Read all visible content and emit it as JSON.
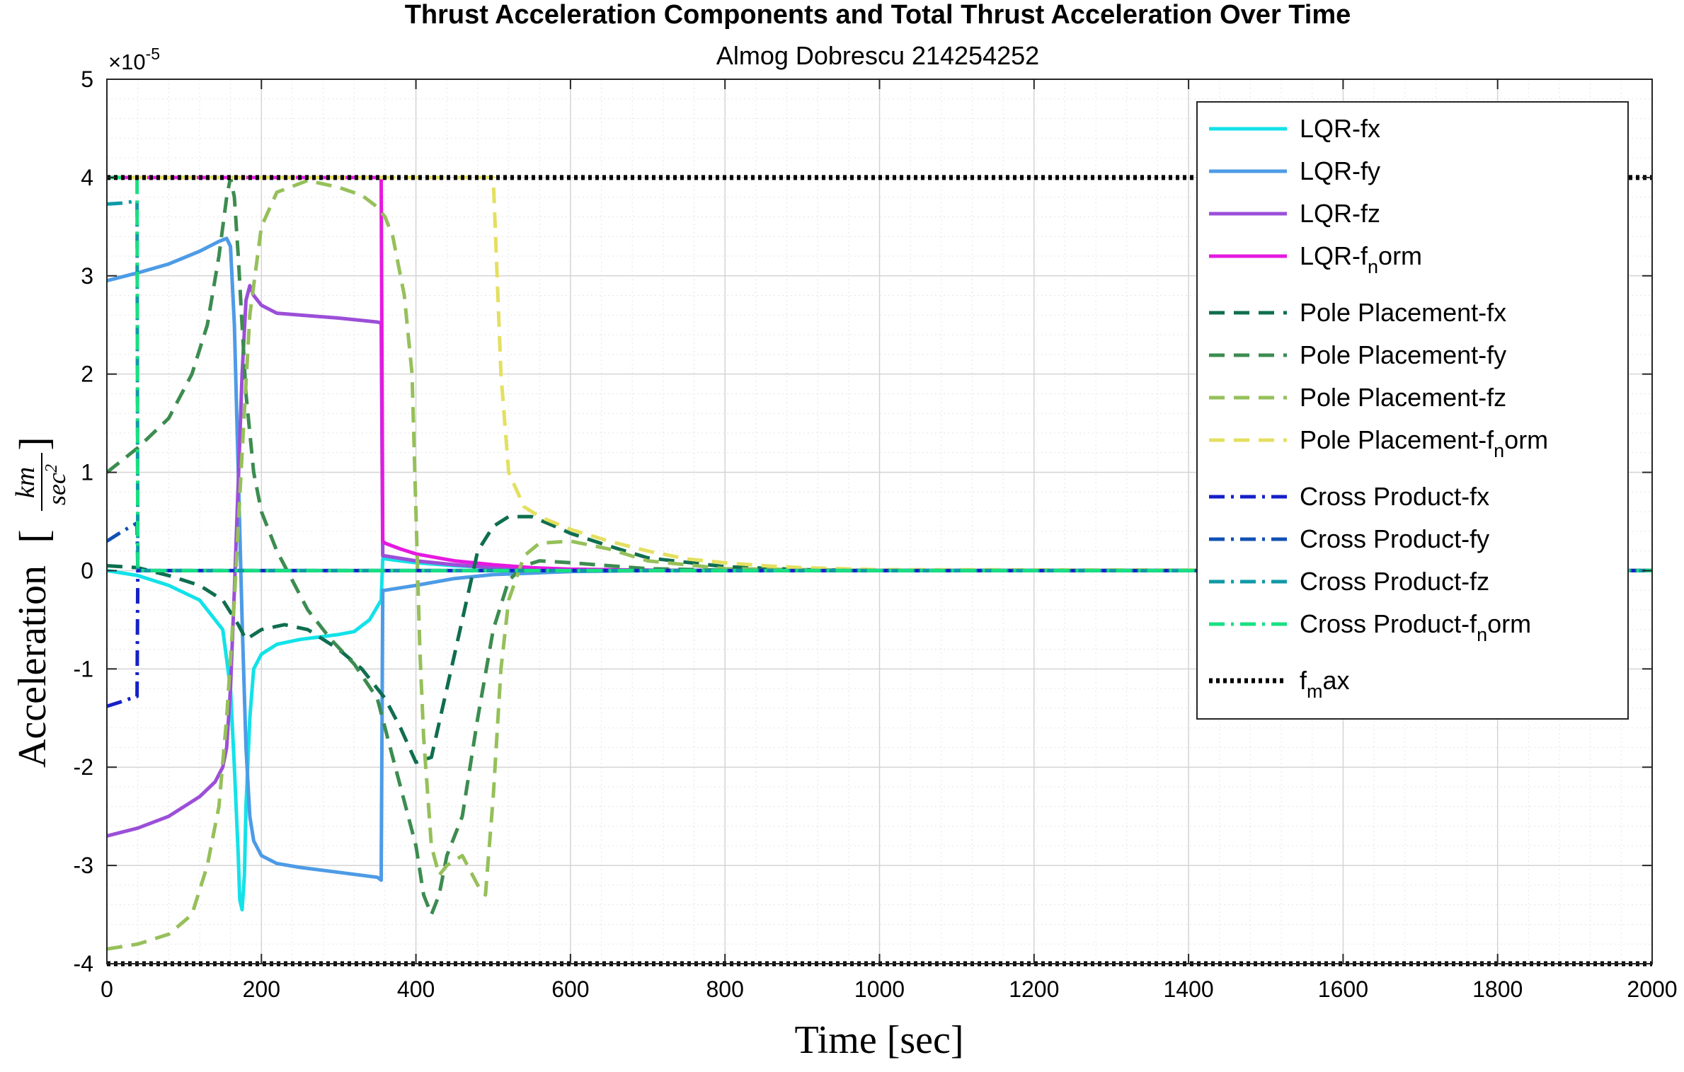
{
  "chart_data": {
    "type": "line",
    "title": "Thrust Acceleration Components and Total Thrust Acceleration Over Time",
    "subtitle": "Almog Dobrescu 214254252",
    "xlabel": "Time [sec]",
    "ylabel_text": "Acceleration",
    "ylabel_unit_numerator": "km",
    "ylabel_unit_denominator": "sec",
    "ylabel_unit_power": "2",
    "y_scale_base": "×10",
    "y_scale_exponent": "-5",
    "xlim": [
      0,
      2000
    ],
    "ylim": [
      -4,
      5
    ],
    "y_multiplier": 1e-05,
    "xticks": [
      0,
      200,
      400,
      600,
      800,
      1000,
      1200,
      1400,
      1600,
      1800,
      2000
    ],
    "xtick_labels": [
      "0",
      "200",
      "400",
      "600",
      "800",
      "1000",
      "1200",
      "1400",
      "1600",
      "1800",
      "2000"
    ],
    "yticks": [
      5,
      4,
      3,
      2,
      1,
      0,
      -1,
      -2,
      -3,
      -4
    ],
    "ytick_labels": [
      "5",
      "4",
      "3",
      "2",
      "1",
      "0",
      "-1",
      "-2",
      "-3",
      "-4"
    ],
    "grid": true,
    "minor_grid": true,
    "legend_position": "top-right",
    "series": [
      {
        "name": "LQR-fx",
        "legend_main": "LQR-fx",
        "legend_sub": "",
        "legend_tail": "",
        "color": "#13e2e8",
        "dash": "solid",
        "x": [
          0,
          40,
          80,
          120,
          150,
          160,
          165,
          170,
          172,
          175,
          178,
          180,
          185,
          190,
          200,
          220,
          250,
          280,
          300,
          320,
          340,
          355,
          357,
          360,
          380,
          400,
          450,
          500,
          600,
          700,
          800,
          1000,
          2000
        ],
        "y": [
          0,
          -0.05,
          -0.15,
          -0.3,
          -0.6,
          -1.2,
          -2,
          -2.9,
          -3.35,
          -3.45,
          -3.1,
          -2.4,
          -1.5,
          -1.0,
          -0.85,
          -0.75,
          -0.7,
          -0.67,
          -0.65,
          -0.62,
          -0.5,
          -0.3,
          0.12,
          0.12,
          0.1,
          0.08,
          0.05,
          0.03,
          0.01,
          0,
          0,
          0,
          0
        ]
      },
      {
        "name": "LQR-fy",
        "legend_main": "LQR-fy",
        "legend_sub": "",
        "legend_tail": "",
        "color": "#4d9be6",
        "dash": "solid",
        "x": [
          0,
          40,
          80,
          120,
          145,
          155,
          160,
          165,
          170,
          175,
          180,
          185,
          190,
          200,
          220,
          250,
          300,
          350,
          355,
          357,
          360,
          400,
          450,
          500,
          600,
          700,
          800,
          1000,
          2000
        ],
        "y": [
          2.95,
          3.03,
          3.12,
          3.25,
          3.35,
          3.38,
          3.3,
          2.5,
          1.0,
          -0.5,
          -1.8,
          -2.5,
          -2.75,
          -2.9,
          -2.98,
          -3.02,
          -3.07,
          -3.12,
          -3.15,
          -0.2,
          -0.2,
          -0.15,
          -0.08,
          -0.04,
          -0.01,
          0,
          0,
          0,
          0
        ]
      },
      {
        "name": "LQR-fz",
        "legend_main": "LQR-fz",
        "legend_sub": "",
        "legend_tail": "",
        "color": "#9b4fd8",
        "dash": "solid",
        "x": [
          0,
          40,
          80,
          120,
          140,
          150,
          155,
          160,
          165,
          170,
          175,
          180,
          185,
          190,
          200,
          220,
          250,
          300,
          350,
          355,
          357,
          360,
          400,
          450,
          500,
          600,
          700,
          800,
          1000,
          2000
        ],
        "y": [
          -2.7,
          -2.62,
          -2.5,
          -2.3,
          -2.15,
          -2.0,
          -1.8,
          -1.2,
          -0.2,
          0.9,
          2.0,
          2.75,
          2.9,
          2.8,
          2.7,
          2.62,
          2.6,
          2.57,
          2.53,
          2.52,
          0.15,
          0.15,
          0.1,
          0.06,
          0.03,
          0.01,
          0,
          0,
          0,
          0
        ]
      },
      {
        "name": "LQR-f_norm",
        "legend_main": "LQR-f",
        "legend_sub": "n",
        "legend_tail": "orm",
        "color": "#e619e0",
        "dash": "solid",
        "x": [
          0,
          355,
          357,
          360,
          380,
          400,
          450,
          500,
          550,
          600,
          700,
          800,
          1000,
          2000
        ],
        "y": [
          4,
          4,
          0.3,
          0.28,
          0.22,
          0.17,
          0.1,
          0.06,
          0.03,
          0.015,
          0.005,
          0,
          0,
          0
        ]
      },
      {
        "name": "Pole Placement-fx",
        "legend_main": "Pole Placement-fx",
        "legend_sub": "",
        "legend_tail": "",
        "color": "#0f6e50",
        "dash": "dashed",
        "x": [
          0,
          40,
          80,
          120,
          150,
          170,
          180,
          200,
          230,
          260,
          300,
          330,
          360,
          380,
          400,
          420,
          440,
          460,
          480,
          500,
          520,
          550,
          580,
          600,
          650,
          700,
          800,
          900,
          1000,
          2000
        ],
        "y": [
          0.05,
          0.03,
          -0.05,
          -0.15,
          -0.3,
          -0.55,
          -0.7,
          -0.6,
          -0.55,
          -0.6,
          -0.8,
          -1.0,
          -1.3,
          -1.6,
          -1.95,
          -1.9,
          -1.2,
          -0.5,
          0.2,
          0.45,
          0.55,
          0.55,
          0.45,
          0.38,
          0.25,
          0.13,
          0.04,
          0.01,
          0,
          0
        ]
      },
      {
        "name": "Pole Placement-fy",
        "legend_main": "Pole Placement-fy",
        "legend_sub": "",
        "legend_tail": "",
        "color": "#3c8c50",
        "dash": "dashed",
        "x": [
          0,
          40,
          80,
          110,
          130,
          145,
          155,
          160,
          165,
          170,
          175,
          180,
          190,
          200,
          220,
          240,
          260,
          290,
          320,
          350,
          380,
          400,
          410,
          420,
          430,
          440,
          460,
          480,
          500,
          520,
          540,
          560,
          600,
          700,
          800,
          1000,
          2000
        ],
        "y": [
          1.0,
          1.25,
          1.55,
          2.0,
          2.5,
          3.2,
          3.8,
          4.0,
          3.8,
          3.2,
          2.5,
          1.8,
          1.0,
          0.6,
          0.2,
          -0.1,
          -0.4,
          -0.7,
          -0.95,
          -1.3,
          -2.2,
          -2.8,
          -3.3,
          -3.5,
          -3.3,
          -2.9,
          -2.5,
          -1.5,
          -0.6,
          -0.1,
          0.05,
          0.1,
          0.08,
          0.02,
          0.005,
          0,
          0
        ]
      },
      {
        "name": "Pole Placement-fz",
        "legend_main": "Pole Placement-fz",
        "legend_sub": "",
        "legend_tail": "",
        "color": "#96c05a",
        "dash": "dashed",
        "x": [
          0,
          40,
          80,
          110,
          130,
          145,
          155,
          165,
          175,
          185,
          200,
          220,
          260,
          300,
          330,
          350,
          360,
          370,
          385,
          395,
          400,
          405,
          410,
          420,
          430,
          440,
          460,
          480,
          490,
          500,
          510,
          520,
          540,
          560,
          600,
          650,
          700,
          800,
          1000,
          2000
        ],
        "y": [
          -3.85,
          -3.8,
          -3.7,
          -3.5,
          -3.0,
          -2.4,
          -1.5,
          -0.3,
          1.2,
          2.6,
          3.5,
          3.85,
          3.97,
          3.9,
          3.82,
          3.7,
          3.6,
          3.4,
          2.8,
          2.0,
          0.6,
          -0.8,
          -1.7,
          -2.8,
          -3.1,
          -3.0,
          -2.9,
          -3.2,
          -3.3,
          -2.3,
          -1.0,
          -0.3,
          0.15,
          0.28,
          0.3,
          0.22,
          0.1,
          0.02,
          0,
          0
        ]
      },
      {
        "name": "Pole Placement-f_norm",
        "legend_main": "Pole Placement-f",
        "legend_sub": "n",
        "legend_tail": "orm",
        "color": "#e4e060",
        "dash": "dashed",
        "x": [
          0,
          500,
          510,
          520,
          540,
          560,
          600,
          650,
          700,
          750,
          800,
          850,
          900,
          1000,
          2000
        ],
        "y": [
          4,
          4,
          2.0,
          1.0,
          0.65,
          0.55,
          0.42,
          0.3,
          0.2,
          0.12,
          0.08,
          0.05,
          0.03,
          0.01,
          0
        ]
      },
      {
        "name": "Cross Product-fx",
        "legend_main": "Cross Product-fx",
        "legend_sub": "",
        "legend_tail": "",
        "color": "#1520c8",
        "dash": "dashdot",
        "x": [
          0,
          20,
          38,
          39,
          40,
          2000
        ],
        "y": [
          -1.38,
          -1.33,
          -1.28,
          -1.28,
          0,
          0
        ]
      },
      {
        "name": "Cross Product-fy",
        "legend_main": "Cross Product-fy",
        "legend_sub": "",
        "legend_tail": "",
        "color": "#1050b4",
        "dash": "dashdot",
        "x": [
          0,
          20,
          38,
          39,
          40,
          2000
        ],
        "y": [
          0.3,
          0.4,
          0.48,
          0.48,
          0,
          0
        ]
      },
      {
        "name": "Cross Product-fz",
        "legend_main": "Cross Product-fz",
        "legend_sub": "",
        "legend_tail": "",
        "color": "#0f9aa6",
        "dash": "dashdot",
        "x": [
          0,
          20,
          38,
          39,
          40,
          2000
        ],
        "y": [
          3.73,
          3.74,
          3.76,
          3.76,
          0,
          0
        ]
      },
      {
        "name": "Cross Product-f_norm",
        "legend_main": "Cross Product-f",
        "legend_sub": "n",
        "legend_tail": "orm",
        "color": "#18e082",
        "dash": "dashdot",
        "x": [
          0,
          38,
          39,
          40,
          2000
        ],
        "y": [
          4,
          4,
          4,
          0,
          0
        ]
      },
      {
        "name": "f_max",
        "legend_main": "f",
        "legend_sub": "m",
        "legend_tail": "ax",
        "color": "#000000",
        "dash": "dotted",
        "x": [
          0,
          2000
        ],
        "y": [
          4,
          4
        ]
      },
      {
        "name": "f_max_neg",
        "legend_main": "",
        "legend_sub": "",
        "legend_tail": "",
        "color": "#000000",
        "dash": "dotted",
        "in_legend": false,
        "x": [
          0,
          2000
        ],
        "y": [
          -4,
          -4
        ]
      }
    ]
  }
}
